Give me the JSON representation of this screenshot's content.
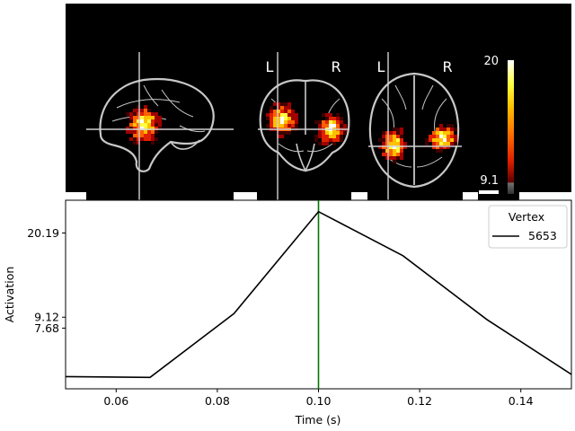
{
  "brain_panel": {
    "labels": {
      "left": "L",
      "right": "R"
    },
    "colorbar": {
      "max_label": "20",
      "threshold_label": "9.1"
    },
    "colormap": [
      "#ffffff",
      "#ffff40",
      "#ffc000",
      "#ff6000",
      "#e02000",
      "#a00000",
      "#400000"
    ],
    "outline_color": "#c8c8c8",
    "background": "#000000"
  },
  "chart_data": {
    "type": "line",
    "x": [
      0.05,
      0.0667,
      0.0833,
      0.1,
      0.1167,
      0.1333,
      0.15
    ],
    "series": [
      {
        "name": "5653",
        "values": [
          1.3,
          1.2,
          9.6,
          23.0,
          17.2,
          8.8,
          1.6
        ],
        "color": "#000000"
      }
    ],
    "xlim": [
      0.05,
      0.15
    ],
    "ylim": [
      -0.3,
      24.5
    ],
    "xticks": [
      0.06,
      0.08,
      0.1,
      0.12,
      0.14
    ],
    "xtick_labels": [
      "0.06",
      "0.08",
      "0.10",
      "0.12",
      "0.14"
    ],
    "yticks": [
      7.68,
      9.12,
      20.19
    ],
    "ytick_labels": [
      "7.68",
      "9.12",
      "20.19"
    ],
    "xlabel": "Time (s)",
    "ylabel": "Activation",
    "legend": {
      "title": "Vertex",
      "placement": "top-right"
    },
    "time_marker": {
      "x": 0.1,
      "color": "#007700"
    },
    "grid": false
  }
}
